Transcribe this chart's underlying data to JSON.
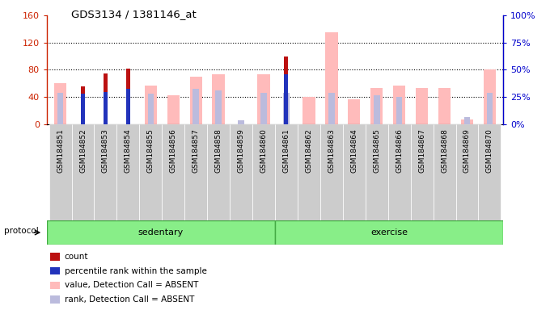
{
  "title": "GDS3134 / 1381146_at",
  "samples": [
    "GSM184851",
    "GSM184852",
    "GSM184853",
    "GSM184854",
    "GSM184855",
    "GSM184856",
    "GSM184857",
    "GSM184858",
    "GSM184859",
    "GSM184860",
    "GSM184861",
    "GSM184862",
    "GSM184863",
    "GSM184864",
    "GSM184865",
    "GSM184866",
    "GSM184867",
    "GSM184868",
    "GSM184869",
    "GSM184870"
  ],
  "count": [
    0,
    55,
    75,
    82,
    0,
    0,
    0,
    0,
    0,
    0,
    100,
    0,
    0,
    0,
    0,
    0,
    0,
    0,
    0,
    0
  ],
  "percentile_rank": [
    0,
    45,
    47,
    52,
    0,
    0,
    0,
    0,
    0,
    0,
    73,
    0,
    0,
    0,
    0,
    0,
    0,
    0,
    0,
    0
  ],
  "value_absent": [
    60,
    0,
    0,
    0,
    57,
    42,
    70,
    73,
    0,
    73,
    0,
    40,
    135,
    37,
    53,
    57,
    53,
    53,
    7,
    80
  ],
  "rank_absent": [
    46,
    0,
    0,
    0,
    45,
    0,
    52,
    50,
    5,
    46,
    46,
    0,
    46,
    0,
    42,
    40,
    0,
    0,
    10,
    46
  ],
  "sedentary_count": 10,
  "exercise_count": 10,
  "protocol_label": "protocol",
  "sedentary_label": "sedentary",
  "exercise_label": "exercise",
  "ylim_left": [
    0,
    160
  ],
  "ylim_right": [
    0,
    100
  ],
  "yticks_left": [
    0,
    40,
    80,
    120,
    160
  ],
  "yticks_left_labels": [
    "0",
    "40",
    "80",
    "120",
    "160"
  ],
  "yticks_right": [
    0,
    25,
    50,
    75,
    100
  ],
  "yticks_right_labels": [
    "0%",
    "25%",
    "50%",
    "75%",
    "100%"
  ],
  "color_count": "#bb1111",
  "color_percentile": "#2233bb",
  "color_value_absent": "#ffbbbb",
  "color_rank_absent": "#bbbbdd",
  "grid_color": "black",
  "grid_lines": [
    40,
    80,
    120
  ],
  "legend_items": [
    "count",
    "percentile rank within the sample",
    "value, Detection Call = ABSENT",
    "rank, Detection Call = ABSENT"
  ],
  "legend_colors": [
    "#bb1111",
    "#2233bb",
    "#ffbbbb",
    "#bbbbdd"
  ],
  "left_axis_color": "#cc2200",
  "right_axis_color": "#0000cc"
}
